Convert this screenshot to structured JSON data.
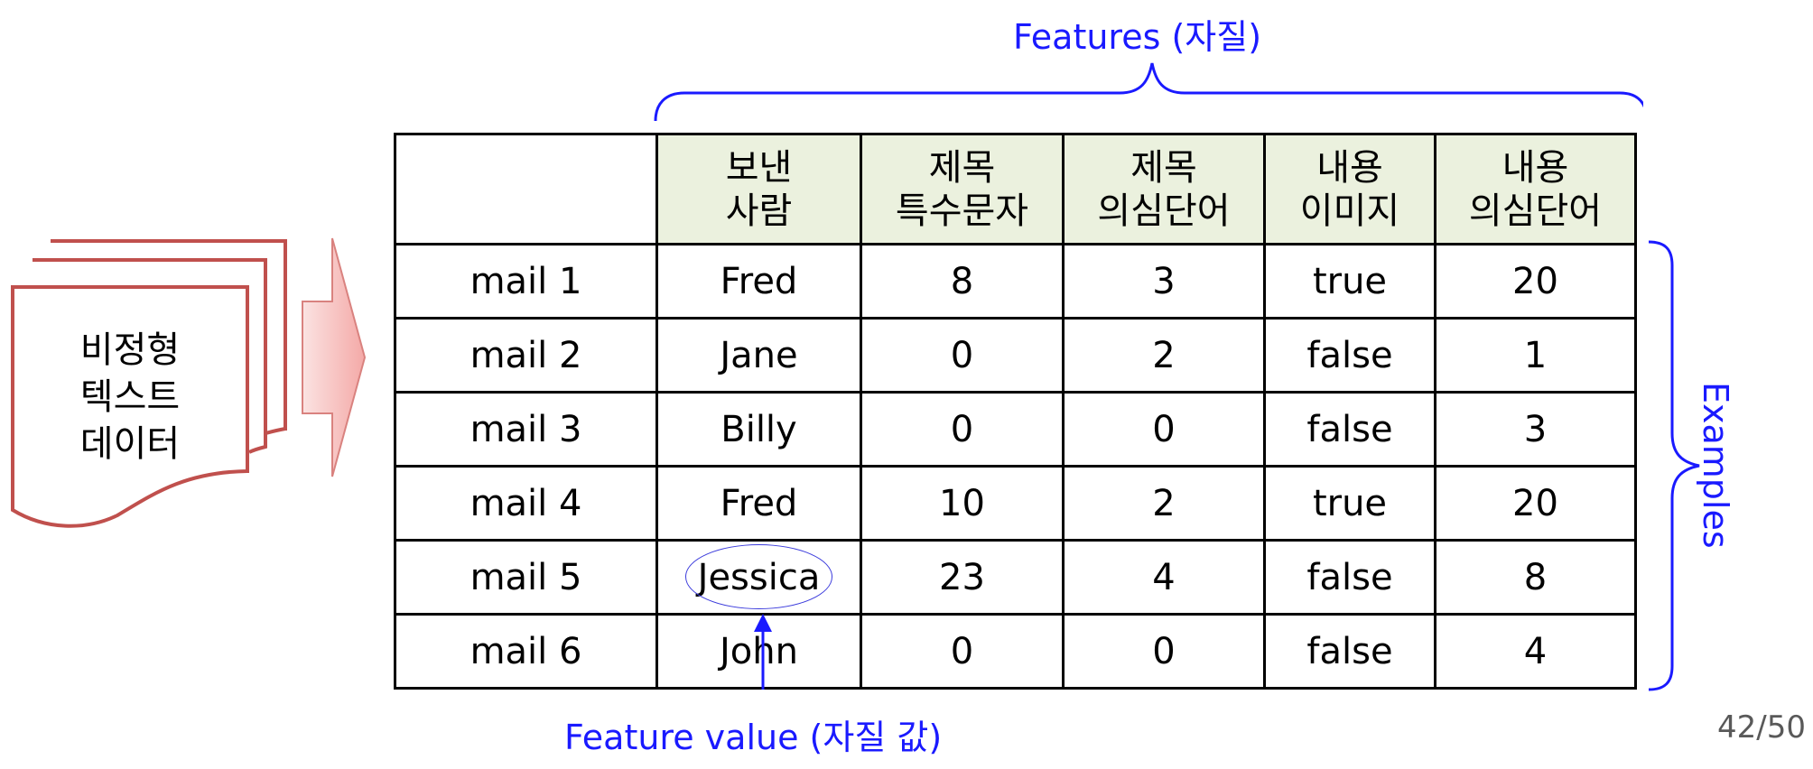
{
  "labels": {
    "features": "Features (자질)",
    "examples": "Examples",
    "feature_value": "Feature value (자질 값)"
  },
  "document": {
    "text_lines": [
      "비정형",
      "텍스트",
      "데이터"
    ],
    "color": "#c0504d",
    "arrow_fill": "#f4b6b4"
  },
  "table": {
    "header": [
      "",
      "보낸\n사람",
      "제목\n특수문자",
      "제목\n의심단어",
      "내용\n이미지",
      "내용\n의심단어"
    ],
    "rows": [
      [
        "mail 1",
        "Fred",
        "8",
        "3",
        "true",
        "20"
      ],
      [
        "mail 2",
        "Jane",
        "0",
        "2",
        "false",
        "1"
      ],
      [
        "mail 3",
        "Billy",
        "0",
        "0",
        "false",
        "3"
      ],
      [
        "mail 4",
        "Fred",
        "10",
        "2",
        "true",
        "20"
      ],
      [
        "mail 5",
        "Jessica",
        "23",
        "4",
        "false",
        "8"
      ],
      [
        "mail 6",
        "John",
        "0",
        "0",
        "false",
        "4"
      ]
    ],
    "header_bg": "#ebf1de",
    "highlighted_value": "Jessica"
  },
  "accent_color": "#1a1aff",
  "page_number": "42/50"
}
